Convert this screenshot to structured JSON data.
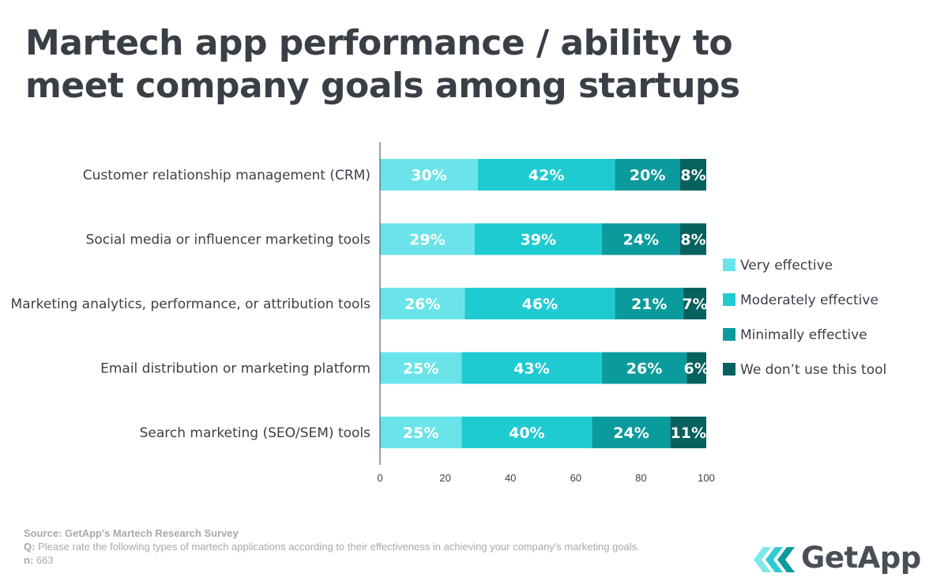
{
  "title_lines": [
    "Martech app performance / ability to",
    "meet company goals among startups"
  ],
  "chart_data": {
    "type": "bar",
    "orientation": "horizontal",
    "stacked": true,
    "title": "Martech app performance / ability to meet company goals among startups",
    "categories": [
      "Customer relationship management (CRM)",
      "Social media or influencer marketing tools",
      "Marketing analytics, performance, or attribution tools",
      "Email distribution or marketing platform",
      "Search marketing (SEO/SEM) tools"
    ],
    "series": [
      {
        "name": "Very effective",
        "color": "#6ae4ea",
        "values": [
          30,
          29,
          26,
          25,
          25
        ],
        "labels": [
          "30%",
          "29%",
          "26%",
          "25%",
          "25%"
        ]
      },
      {
        "name": "Moderately effective",
        "color": "#1ecbd1",
        "values": [
          42,
          39,
          46,
          43,
          40
        ],
        "labels": [
          "42%",
          "39%",
          "46%",
          "43%",
          "40%"
        ]
      },
      {
        "name": "Minimally effective",
        "color": "#0b9b9d",
        "values": [
          20,
          24,
          21,
          26,
          24
        ],
        "labels": [
          "20%",
          "24%",
          "21%",
          "26%",
          "24%"
        ]
      },
      {
        "name": "We don’t use this tool",
        "color": "#07615f",
        "values": [
          8,
          8,
          7,
          6,
          11
        ],
        "labels": [
          "8%",
          "8%",
          "7%",
          "6%",
          "11%"
        ]
      }
    ],
    "xlim": [
      0,
      100
    ],
    "xticks": [
      0,
      20,
      40,
      60,
      80,
      100
    ],
    "xlabel": "",
    "ylabel": "",
    "grid": false,
    "legend_position": "right"
  },
  "footer": {
    "source_key": "Source:",
    "source_text": "GetApp's Martech Research Survey",
    "q_key": "Q:",
    "q_text": "Please rate the following types of martech applications according to their effectiveness in achieving your company's marketing goals.",
    "n_key": "n:",
    "n_text": "663"
  },
  "brand": {
    "name": "GetApp",
    "logo_icon": "getapp-chevrons-icon"
  }
}
